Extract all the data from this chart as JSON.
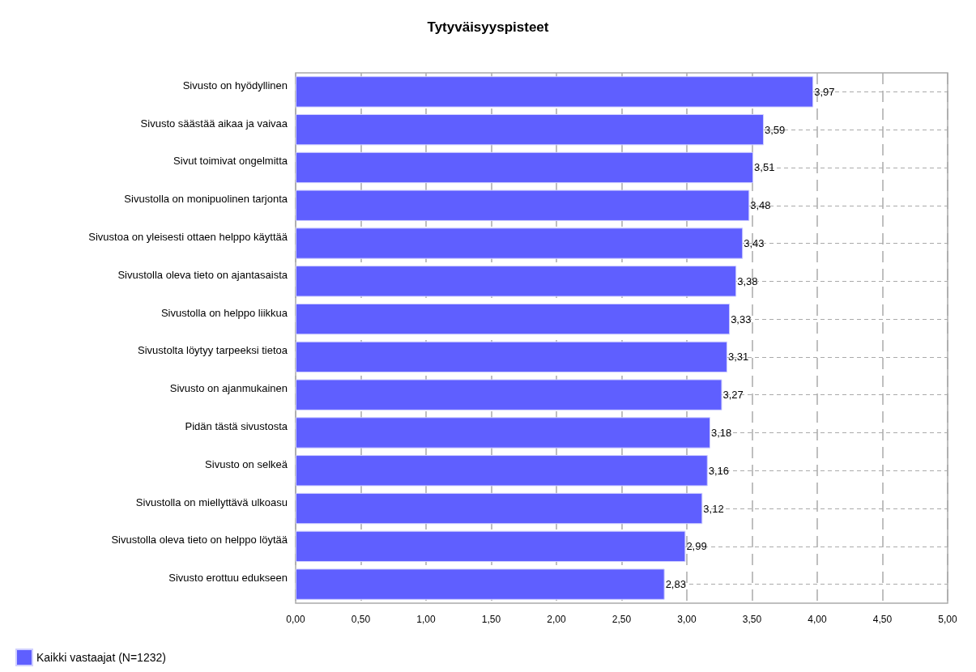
{
  "chart_data": {
    "type": "bar",
    "orientation": "horizontal",
    "title": "Tytyväisyyspisteet",
    "categories": [
      "Sivusto on hyödyllinen",
      "Sivusto säästää aikaa ja vaivaa",
      "Sivut toimivat ongelmitta",
      "Sivustolla on monipuolinen tarjonta",
      "Sivustoa on yleisesti ottaen helppo käyttää",
      "Sivustolla oleva tieto on ajantasaista",
      "Sivustolla on helppo liikkua",
      "Sivustolta löytyy tarpeeksi tietoa",
      "Sivusto on ajanmukainen",
      "Pidän tästä sivustosta",
      "Sivusto on selkeä",
      "Sivustolla on miellyttävä ulkoasu",
      "Sivustolla oleva tieto on helppo löytää",
      "Sivusto erottuu edukseen"
    ],
    "series": [
      {
        "name": "Kaikki vastaajat (N=1232)",
        "color": "#5f5fff",
        "values": [
          3.97,
          3.59,
          3.51,
          3.48,
          3.43,
          3.38,
          3.33,
          3.31,
          3.27,
          3.18,
          3.16,
          3.12,
          2.99,
          2.83
        ],
        "value_labels": [
          "3,97",
          "3,59",
          "3,51",
          "3,48",
          "3,43",
          "3,38",
          "3,33",
          "3,31",
          "3,27",
          "3,18",
          "3,16",
          "3,12",
          "2,99",
          "2,83"
        ]
      }
    ],
    "xlim": [
      0,
      5
    ],
    "xticks": [
      {
        "value": 0,
        "label": "0,00"
      },
      {
        "value": 0.5,
        "label": "0,50"
      },
      {
        "value": 1,
        "label": "1,00"
      },
      {
        "value": 1.5,
        "label": "1,50"
      },
      {
        "value": 2,
        "label": "2,00"
      },
      {
        "value": 2.5,
        "label": "2,50"
      },
      {
        "value": 3,
        "label": "3,00"
      },
      {
        "value": 3.5,
        "label": "3,50"
      },
      {
        "value": 4,
        "label": "4,00"
      },
      {
        "value": 4.5,
        "label": "4,50"
      },
      {
        "value": 5,
        "label": "5,00"
      }
    ],
    "grid": true,
    "legend": "bottom left"
  }
}
